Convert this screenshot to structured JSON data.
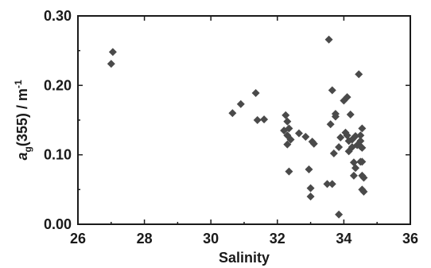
{
  "chart_data": {
    "type": "scatter",
    "xlabel": "Salinity",
    "ylabel_main": "a",
    "ylabel_sub": "g",
    "ylabel_rest": "(355) / m",
    "ylabel_sup": "-1",
    "xlim": [
      26,
      36
    ],
    "ylim": [
      0.0,
      0.3
    ],
    "x_ticks": [
      26,
      28,
      30,
      32,
      34,
      36
    ],
    "x_tick_labels": [
      "26",
      "28",
      "30",
      "32",
      "34",
      "36"
    ],
    "y_ticks": [
      0.0,
      0.1,
      0.2,
      0.3
    ],
    "y_tick_labels": [
      "0.00",
      "0.10",
      "0.20",
      "0.30"
    ],
    "marker": "diamond",
    "marker_color": "#4a4a4a",
    "grid": false,
    "points": [
      [
        27.05,
        0.248
      ],
      [
        27.0,
        0.231
      ],
      [
        30.65,
        0.16
      ],
      [
        30.9,
        0.173
      ],
      [
        31.35,
        0.189
      ],
      [
        31.4,
        0.15
      ],
      [
        31.6,
        0.151
      ],
      [
        32.2,
        0.135
      ],
      [
        32.25,
        0.157
      ],
      [
        32.3,
        0.148
      ],
      [
        32.3,
        0.128
      ],
      [
        32.3,
        0.115
      ],
      [
        32.35,
        0.076
      ],
      [
        32.35,
        0.138
      ],
      [
        32.4,
        0.122
      ],
      [
        32.65,
        0.131
      ],
      [
        32.85,
        0.126
      ],
      [
        32.95,
        0.079
      ],
      [
        33.0,
        0.052
      ],
      [
        33.0,
        0.04
      ],
      [
        33.05,
        0.119
      ],
      [
        33.1,
        0.116
      ],
      [
        33.5,
        0.058
      ],
      [
        33.55,
        0.266
      ],
      [
        33.65,
        0.058
      ],
      [
        33.6,
        0.144
      ],
      [
        33.65,
        0.193
      ],
      [
        33.7,
        0.102
      ],
      [
        33.75,
        0.155
      ],
      [
        33.75,
        0.159
      ],
      [
        33.85,
        0.111
      ],
      [
        33.9,
        0.125
      ],
      [
        33.85,
        0.014
      ],
      [
        34.0,
        0.178
      ],
      [
        34.05,
        0.132
      ],
      [
        34.1,
        0.183
      ],
      [
        34.1,
        0.128
      ],
      [
        34.15,
        0.12
      ],
      [
        34.15,
        0.105
      ],
      [
        34.2,
        0.158
      ],
      [
        34.25,
        0.122
      ],
      [
        34.25,
        0.111
      ],
      [
        34.3,
        0.089
      ],
      [
        34.3,
        0.07
      ],
      [
        34.35,
        0.081
      ],
      [
        34.35,
        0.127
      ],
      [
        34.4,
        0.114
      ],
      [
        34.45,
        0.216
      ],
      [
        34.5,
        0.112
      ],
      [
        34.5,
        0.12
      ],
      [
        34.5,
        0.09
      ],
      [
        34.5,
        0.128
      ],
      [
        34.55,
        0.138
      ],
      [
        34.55,
        0.11
      ],
      [
        34.55,
        0.09
      ],
      [
        34.55,
        0.07
      ],
      [
        34.55,
        0.05
      ],
      [
        34.6,
        0.047
      ],
      [
        34.6,
        0.067
      ]
    ]
  }
}
